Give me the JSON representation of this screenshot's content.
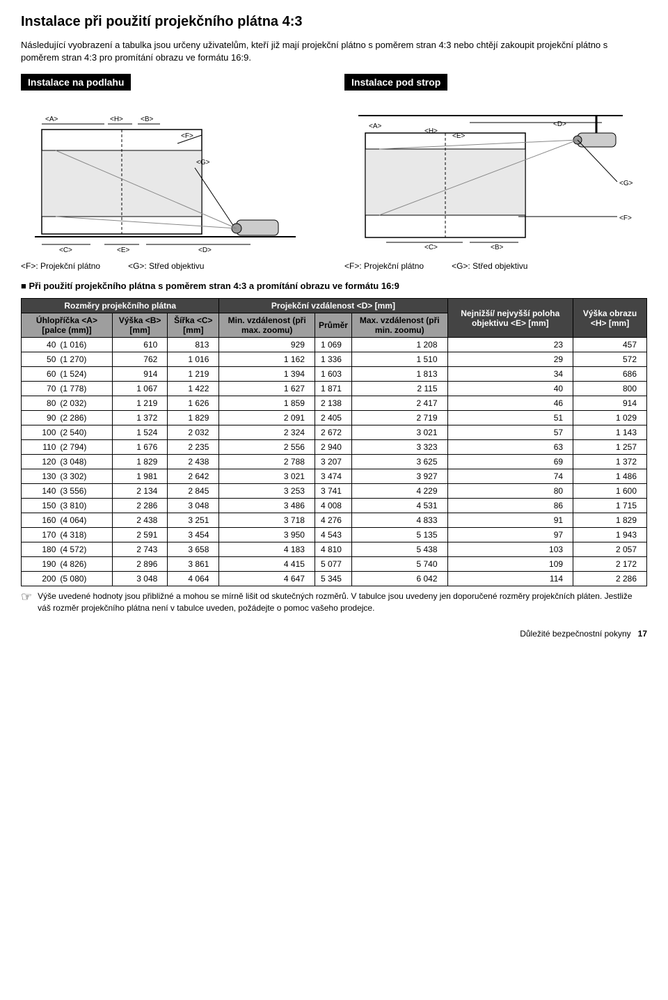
{
  "page_title": "Instalace při použití projekčního plátna 4:3",
  "intro": "Následující vyobrazení a tabulka jsou určeny uživatelům, kteří již mají projekční plátno s poměrem stran 4:3 nebo chtějí zakoupit projekční plátno s poměrem stran 4:3 pro promítání obrazu ve formátu 16:9.",
  "left_title": "Instalace na podlahu",
  "right_title": "Instalace pod strop",
  "cap_f": "<F>: Projekční plátno",
  "cap_g": "<G>: Střed objektivu",
  "note": "Při použití projekčního plátna s poměrem stran 4:3 a promítání obrazu ve formátu 16:9",
  "headers": {
    "group": "Rozměry projekčního plátna",
    "distgroup": "Projekční vzdálenost <D> [mm]",
    "a": "Úhlopříčka <A> [palce (mm)]",
    "b": "Výška <B> [mm]",
    "c": "Šířka <C> [mm]",
    "min": "Min. vzdále­nost (při max. zoomu)",
    "avg": "Průměr",
    "max": "Max. vzdále­nost (při min. zoomu)",
    "e": "Nejnižší/ nejvyšší poloha objektivu <E> [mm]",
    "h": "Výška obrazu <H> [mm]"
  },
  "rows": [
    [
      "40",
      "(1 016)",
      "610",
      "813",
      "929",
      "1 069",
      "1 208",
      "23",
      "457"
    ],
    [
      "50",
      "(1 270)",
      "762",
      "1 016",
      "1 162",
      "1 336",
      "1 510",
      "29",
      "572"
    ],
    [
      "60",
      "(1 524)",
      "914",
      "1 219",
      "1 394",
      "1 603",
      "1 813",
      "34",
      "686"
    ],
    [
      "70",
      "(1 778)",
      "1 067",
      "1 422",
      "1 627",
      "1 871",
      "2 115",
      "40",
      "800"
    ],
    [
      "80",
      "(2 032)",
      "1 219",
      "1 626",
      "1 859",
      "2 138",
      "2 417",
      "46",
      "914"
    ],
    [
      "90",
      "(2 286)",
      "1 372",
      "1 829",
      "2 091",
      "2 405",
      "2 719",
      "51",
      "1 029"
    ],
    [
      "100",
      "(2 540)",
      "1 524",
      "2 032",
      "2 324",
      "2 672",
      "3 021",
      "57",
      "1 143"
    ],
    [
      "110",
      "(2 794)",
      "1 676",
      "2 235",
      "2 556",
      "2 940",
      "3 323",
      "63",
      "1 257"
    ],
    [
      "120",
      "(3 048)",
      "1 829",
      "2 438",
      "2 788",
      "3 207",
      "3 625",
      "69",
      "1 372"
    ],
    [
      "130",
      "(3 302)",
      "1 981",
      "2 642",
      "3 021",
      "3 474",
      "3 927",
      "74",
      "1 486"
    ],
    [
      "140",
      "(3 556)",
      "2 134",
      "2 845",
      "3 253",
      "3 741",
      "4 229",
      "80",
      "1 600"
    ],
    [
      "150",
      "(3 810)",
      "2 286",
      "3 048",
      "3 486",
      "4 008",
      "4 531",
      "86",
      "1 715"
    ],
    [
      "160",
      "(4 064)",
      "2 438",
      "3 251",
      "3 718",
      "4 276",
      "4 833",
      "91",
      "1 829"
    ],
    [
      "170",
      "(4 318)",
      "2 591",
      "3 454",
      "3 950",
      "4 543",
      "5 135",
      "97",
      "1 943"
    ],
    [
      "180",
      "(4 572)",
      "2 743",
      "3 658",
      "4 183",
      "4 810",
      "5 438",
      "103",
      "2 057"
    ],
    [
      "190",
      "(4 826)",
      "2 896",
      "3 861",
      "4 415",
      "5 077",
      "5 740",
      "109",
      "2 172"
    ],
    [
      "200",
      "(5 080)",
      "3 048",
      "4 064",
      "4 647",
      "5 345",
      "6 042",
      "114",
      "2 286"
    ]
  ],
  "footnote": "Výše uvedené hodnoty jsou přibližné a mohou se mírně lišit od skutečných rozměrů. V tabulce jsou uvedeny jen doporučené rozměry projekčních pláten. Jestliže váš rozměr projekčního plátna není v tabulce uveden, požádejte o pomoc vašeho prodejce.",
  "pagefoot_label": "Důležité bezpečnostní pokyny",
  "pagefoot_num": "17",
  "labels": {
    "A": "<A>",
    "B": "<B>",
    "C": "<C>",
    "D": "<D>",
    "E": "<E>",
    "F": "<F>",
    "G": "<G>",
    "H": "<H>"
  }
}
